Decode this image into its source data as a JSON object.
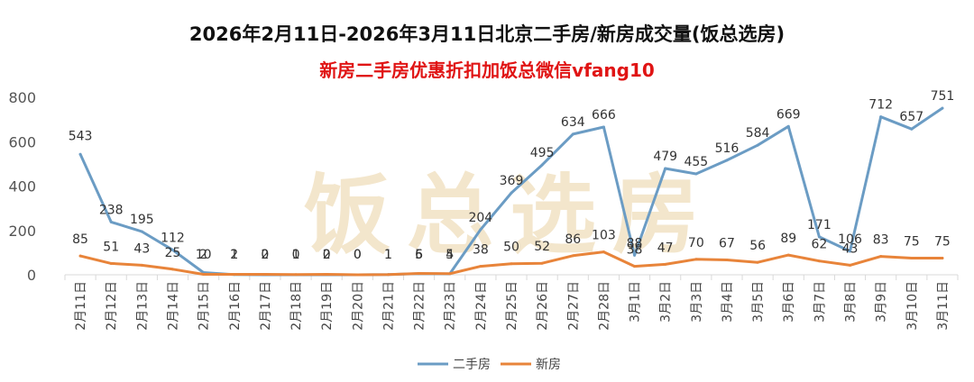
{
  "title": "2026年2月11日-2026年3月11日北京二手房/新房成交量(饭总选房)",
  "subtitle": "新房二手房优惠折扣加饭总微信vfang10",
  "watermark": "饭总选房",
  "colors": {
    "title": "#111111",
    "subtitle": "#e01414",
    "second_hand": "#6b9cc4",
    "new_home": "#e8843a",
    "watermark": "#f3e6cc",
    "grid": "#d9d9d9",
    "label": "#333333"
  },
  "chart_data": {
    "type": "line",
    "title": "2026年2月11日-2026年3月11日北京二手房/新房成交量(饭总选房)",
    "subtitle": "新房二手房优惠折扣加饭总微信vfang10",
    "xlabel": "",
    "ylabel": "",
    "ylim": [
      0,
      800
    ],
    "yticks": [
      0,
      200,
      400,
      600,
      800
    ],
    "grid": false,
    "legend_position": "bottom-center",
    "categories": [
      "2月11日",
      "2月12日",
      "2月13日",
      "2月14日",
      "2月15日",
      "2月16日",
      "2月17日",
      "2月18日",
      "2月19日",
      "2月20日",
      "2月21日",
      "2月22日",
      "2月23日",
      "2月24日",
      "2月25日",
      "2月26日",
      "2月27日",
      "2月28日",
      "3月1日",
      "3月2日",
      "3月3日",
      "3月4日",
      "3月5日",
      "3月6日",
      "3月7日",
      "3月8日",
      "3月9日",
      "3月10日",
      "3月11日"
    ],
    "series": [
      {
        "name": "二手房",
        "values": [
          543,
          238,
          195,
          112,
          10,
          1,
          0,
          0,
          0,
          0,
          1,
          5,
          4,
          204,
          369,
          495,
          634,
          666,
          88,
          479,
          455,
          516,
          584,
          669,
          171,
          106,
          712,
          657,
          751
        ]
      },
      {
        "name": "新房",
        "values": [
          85,
          51,
          43,
          25,
          2,
          2,
          2,
          1,
          2,
          0,
          1,
          6,
          5,
          38,
          50,
          52,
          86,
          103,
          38,
          47,
          70,
          67,
          56,
          89,
          62,
          43,
          83,
          75,
          75
        ]
      }
    ]
  }
}
